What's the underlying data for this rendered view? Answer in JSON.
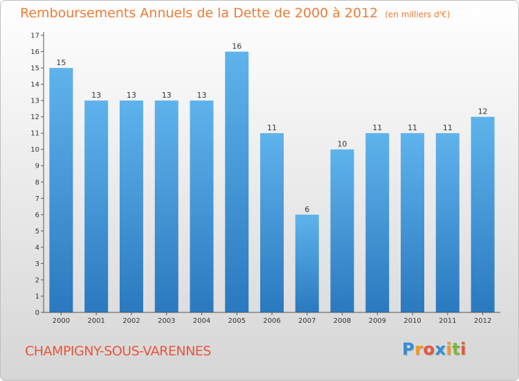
{
  "chart_data": {
    "type": "bar",
    "title": "Remboursements Annuels de la Dette de 2000 à 2012",
    "unit": "(en milliers d'€)",
    "categories": [
      "2000",
      "2001",
      "2002",
      "2003",
      "2004",
      "2005",
      "2006",
      "2007",
      "2008",
      "2009",
      "2010",
      "2011",
      "2012"
    ],
    "values": [
      15,
      13,
      13,
      13,
      13,
      16,
      11,
      6,
      10,
      11,
      11,
      11,
      12
    ],
    "data_labels": [
      "15",
      "13",
      "13",
      "13",
      "13",
      "16",
      "11",
      "6",
      "10",
      "11",
      "11",
      "11",
      "12"
    ],
    "y_ticks": [
      0,
      1,
      2,
      3,
      4,
      5,
      6,
      7,
      8,
      9,
      10,
      11,
      12,
      13,
      14,
      15,
      16,
      17
    ],
    "ylim": [
      0,
      17
    ],
    "xlabel": "",
    "ylabel": "",
    "grid": false,
    "bar_color": "#4aa0e0"
  },
  "commune": "CHAMPIGNY-SOUS-VARENNES",
  "logo": {
    "letters": [
      "P",
      "r",
      "o",
      "x",
      "i",
      "t",
      "i"
    ],
    "colors": [
      "#2f8fd8",
      "#f39a1f",
      "#e8553a",
      "#2f8fd8",
      "#f39a1f",
      "#7ab83a",
      "#e8553a"
    ]
  },
  "colors": {
    "title": "#ef7a35",
    "commune": "#e8553a",
    "axis": "#555555"
  }
}
